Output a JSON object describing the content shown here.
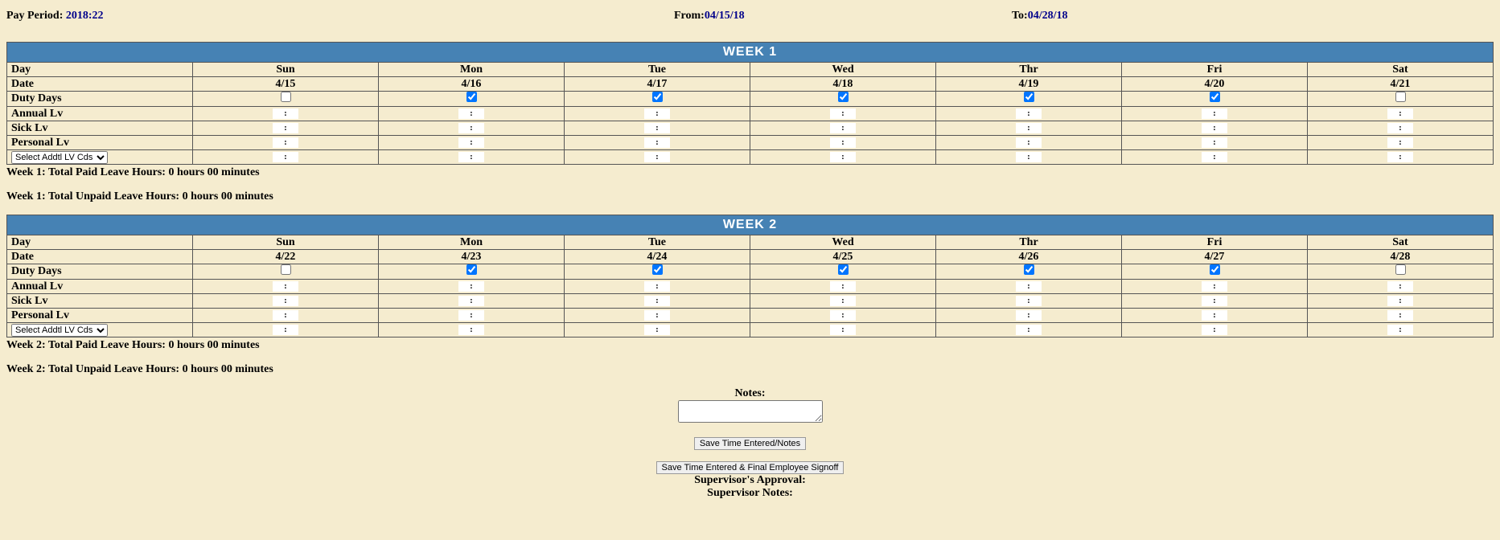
{
  "header": {
    "pay_period_label": "Pay Period: ",
    "pay_period_value": "2018:22",
    "from_label": "From:",
    "from_value": "04/15/18",
    "to_label": "To:",
    "to_value": "04/28/18"
  },
  "row_labels": {
    "day": "Day",
    "date": "Date",
    "duty": "Duty Days",
    "annual": "Annual Lv",
    "sick": "Sick Lv",
    "personal": "Personal Lv"
  },
  "addtl_select": {
    "placeholder": "Select Addtl LV Cds"
  },
  "weeks": [
    {
      "title": "WEEK 1",
      "days": [
        "Sun",
        "Mon",
        "Tue",
        "Wed",
        "Thr",
        "Fri",
        "Sat"
      ],
      "dates": [
        "4/15",
        "4/16",
        "4/17",
        "4/18",
        "4/19",
        "4/20",
        "4/21"
      ],
      "duty": [
        false,
        true,
        true,
        true,
        true,
        true,
        false
      ],
      "paid_summary": "Week 1: Total Paid Leave Hours: 0 hours 00 minutes",
      "unpaid_summary": "Week 1: Total Unpaid Leave Hours: 0 hours 00 minutes"
    },
    {
      "title": "WEEK 2",
      "days": [
        "Sun",
        "Mon",
        "Tue",
        "Wed",
        "Thr",
        "Fri",
        "Sat"
      ],
      "dates": [
        "4/22",
        "4/23",
        "4/24",
        "4/25",
        "4/26",
        "4/27",
        "4/28"
      ],
      "duty": [
        false,
        true,
        true,
        true,
        true,
        true,
        false
      ],
      "paid_summary": "Week 2: Total Paid Leave Hours: 0 hours 00 minutes",
      "unpaid_summary": "Week 2: Total Unpaid Leave Hours: 0 hours 00 minutes"
    }
  ],
  "footer": {
    "notes_label": "Notes:",
    "notes_value": "",
    "save_notes_btn": "Save Time Entered/Notes",
    "save_signoff_btn": "Save Time Entered & Final Employee Signoff",
    "supervisor_approval": "Supervisor's Approval:",
    "supervisor_notes": "Supervisor Notes:"
  },
  "style": {
    "background": "#f5eccf",
    "week_header_bg": "#4682b4",
    "week_header_color": "#ffffff",
    "value_color": "#00008b",
    "border_color": "#555555"
  }
}
